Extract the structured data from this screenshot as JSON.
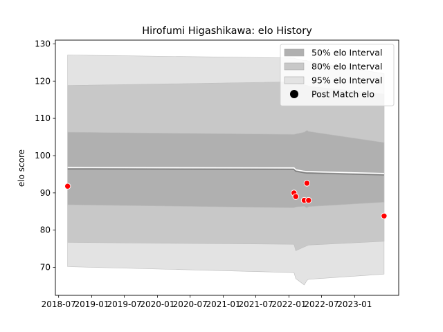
{
  "chart_data": {
    "type": "area",
    "title": "Hirofumi Higashikawa: elo History",
    "xlabel": "",
    "ylabel": "elo score",
    "xlim": [
      "2018-06-13",
      "2023-09-03"
    ],
    "ylim": [
      62.5,
      131.0
    ],
    "y_ticks": [
      70,
      80,
      90,
      100,
      110,
      120,
      130
    ],
    "x_ticks": [
      {
        "date": "2018-07-01",
        "label": "2018-07"
      },
      {
        "date": "2019-01-01",
        "label": "2019-01"
      },
      {
        "date": "2019-07-01",
        "label": "2019-07"
      },
      {
        "date": "2020-01-01",
        "label": "2020-01"
      },
      {
        "date": "2020-07-01",
        "label": "2020-07"
      },
      {
        "date": "2021-01-01",
        "label": "2021-01"
      },
      {
        "date": "2021-07-01",
        "label": "2021-07"
      },
      {
        "date": "2022-01-01",
        "label": "2022-01"
      },
      {
        "date": "2022-07-01",
        "label": "2022-07"
      },
      {
        "date": "2023-01-01",
        "label": "2023-01"
      }
    ],
    "x": [
      "2018-08-20",
      "2022-01-29",
      "2022-02-08",
      "2022-03-27",
      "2022-04-11",
      "2022-04-20",
      "2023-06-14"
    ],
    "series": [
      {
        "name": "50% elo Interval",
        "color": "#b0b0b0",
        "lower": [
          86.8,
          86.0,
          86.2,
          86.4,
          86.0,
          86.3,
          87.5
        ],
        "upper": [
          106.3,
          105.7,
          105.8,
          106.3,
          106.8,
          106.5,
          103.5
        ]
      },
      {
        "name": "80% elo Interval",
        "color": "#c8c8c8",
        "lower": [
          76.7,
          76.2,
          74.5,
          75.5,
          75.8,
          76.0,
          77.0
        ],
        "upper": [
          118.8,
          119.8,
          119.5,
          119.0,
          118.8,
          118.6,
          116.5
        ]
      },
      {
        "name": "95% elo Interval",
        "color": "#e3e3e3",
        "lower": [
          70.2,
          68.6,
          67.0,
          65.3,
          66.5,
          66.8,
          68.2
        ],
        "upper": [
          127.0,
          126.2,
          126.0,
          125.5,
          125.5,
          125.2,
          122.0
        ]
      },
      {
        "name": "Post Match elo",
        "color": "#ff0000",
        "points": [
          {
            "x": "2018-08-20",
            "y": 91.8
          },
          {
            "x": "2022-01-29",
            "y": 90.0
          },
          {
            "x": "2022-02-08",
            "y": 89.0
          },
          {
            "x": "2022-03-27",
            "y": 88.0
          },
          {
            "x": "2022-04-11",
            "y": 92.6
          },
          {
            "x": "2022-04-20",
            "y": 88.0
          },
          {
            "x": "2023-06-14",
            "y": 83.8
          }
        ]
      }
    ],
    "mean_line": {
      "color": "#808080",
      "values": [
        96.4,
        96.3,
        95.8,
        95.4,
        95.3,
        95.3,
        94.8
      ]
    },
    "grid": false,
    "legend": "top-right"
  }
}
